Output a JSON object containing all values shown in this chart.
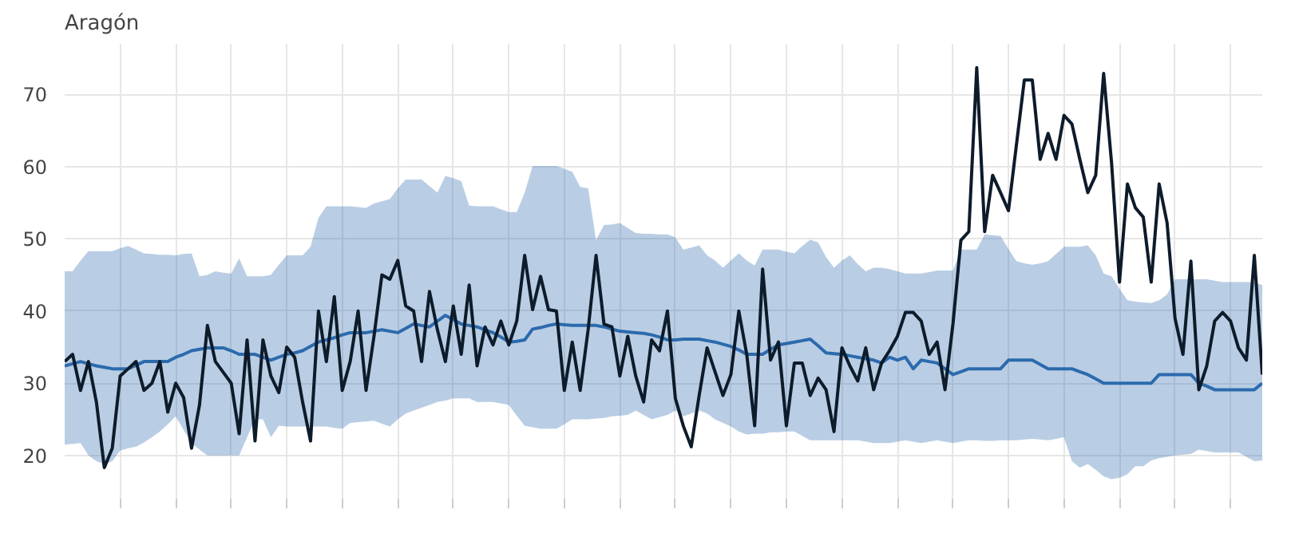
{
  "chart_data": {
    "type": "line",
    "title": "Aragón",
    "categories": [
      null,
      null,
      null,
      null,
      null,
      null,
      null,
      null,
      null,
      null,
      null,
      null,
      null,
      null,
      null,
      null,
      null,
      null,
      null,
      null,
      null,
      null,
      null,
      null,
      null,
      null,
      null,
      null,
      null,
      null,
      null,
      null,
      null,
      null,
      null,
      null,
      null,
      null,
      null,
      null,
      null,
      null,
      null,
      null,
      null,
      null,
      null,
      null,
      null,
      null,
      null,
      null,
      null,
      null,
      null,
      null,
      null,
      null,
      null,
      null,
      null,
      null,
      null,
      null,
      null,
      null,
      null,
      null,
      null,
      null,
      null,
      null,
      null,
      null,
      null,
      null,
      null,
      null,
      null,
      null,
      null,
      null,
      null,
      null,
      null,
      null,
      null,
      null,
      null,
      null,
      null,
      null,
      null,
      null,
      null,
      null,
      null,
      null,
      null,
      null,
      null,
      null,
      null,
      null,
      null,
      null,
      null,
      null,
      null,
      null,
      null,
      null,
      null,
      null,
      null,
      null,
      null,
      null,
      null,
      null,
      null,
      null,
      null,
      null,
      null,
      null,
      null,
      null,
      null,
      null,
      null,
      null,
      null,
      null,
      null,
      null,
      null,
      null,
      null,
      null,
      null,
      null,
      null,
      null,
      null,
      null,
      null,
      null,
      null,
      null,
      null,
      null
    ],
    "ylim": [
      14,
      77
    ],
    "yticks": [
      20,
      30,
      40,
      50,
      60,
      70
    ],
    "tick_labels": "y",
    "grid": true,
    "marker": "none",
    "line_style": "solid",
    "series": [
      {
        "color": "#2c6aad",
        "values": [
          32.4,
          32.7,
          33,
          32.7,
          32.4,
          32.2,
          32,
          32,
          32,
          32.5,
          33,
          33,
          33,
          33,
          33.6,
          34,
          34.5,
          34.7,
          34.9,
          34.9,
          34.9,
          34.5,
          34,
          34,
          34,
          33.6,
          33.2,
          33.6,
          34,
          34.2,
          34.5,
          35.1,
          35.7,
          36,
          36.3,
          36.7,
          37,
          37,
          37,
          37.2,
          37.4,
          37.2,
          37,
          37.6,
          38.2,
          38,
          37.8,
          38.6,
          39.4,
          38.8,
          38.2,
          38,
          37.8,
          37.4,
          37,
          36.4,
          35.7,
          35.8,
          36,
          37.5,
          37.7,
          38,
          38.2,
          38.1,
          38,
          38,
          38,
          38,
          37.8,
          37.5,
          37.2,
          37.1,
          37,
          36.9,
          36.7,
          36.4,
          36,
          36,
          36.1,
          36.1,
          36.1,
          35.9,
          35.7,
          35.4,
          35.1,
          34.6,
          34,
          34,
          34,
          34.7,
          35.3,
          35.5,
          35.7,
          35.9,
          36.1,
          35.2,
          34.2,
          34.1,
          34,
          33.8,
          33.6,
          33.4,
          33.2,
          32.8,
          33.6,
          33.2,
          33.6,
          32,
          33.2,
          33,
          32.8,
          32,
          31.2,
          31.6,
          32,
          32,
          32,
          32,
          32,
          33.2,
          33.2,
          33.2,
          33.2,
          32.6,
          32,
          32,
          32,
          32,
          31.6,
          31.2,
          30.6,
          30,
          30,
          30,
          30,
          30,
          30,
          30,
          31.2,
          31.2,
          31.2,
          31.2,
          31.2,
          30,
          29.6,
          29.1,
          29.1,
          29.1,
          29.1,
          29.1,
          29.1,
          30
        ],
        "lower": [
          21.5,
          21.6,
          21.7,
          20,
          19.2,
          18.8,
          19.2,
          20.7,
          21,
          21.2,
          21.8,
          22.5,
          23.3,
          24.3,
          25.4,
          23.5,
          21.7,
          20.8,
          20,
          20,
          20,
          20,
          20,
          22.5,
          25,
          25,
          22.5,
          24.1,
          24,
          24,
          24,
          24,
          24,
          24,
          23.8,
          23.7,
          24.5,
          24.6,
          24.7,
          24.8,
          24.4,
          24,
          25,
          25.8,
          26.2,
          26.6,
          27,
          27.4,
          27.6,
          27.9,
          27.9,
          27.9,
          27.4,
          27.4,
          27.4,
          27.2,
          27,
          25.5,
          24.1,
          23.9,
          23.7,
          23.7,
          23.7,
          24.3,
          25,
          25,
          25,
          25.1,
          25.2,
          25.4,
          25.5,
          25.6,
          26.2,
          25.6,
          25,
          25.3,
          25.6,
          26.2,
          25.4,
          25.8,
          26.2,
          25.8,
          25,
          24.5,
          24,
          23.3,
          22.9,
          23,
          23,
          23.2,
          23.2,
          23.3,
          23.3,
          22.7,
          22.1,
          22.1,
          22.1,
          22.1,
          22.1,
          22.1,
          22.1,
          21.9,
          21.7,
          21.7,
          21.7,
          21.9,
          22.1,
          21.9,
          21.7,
          21.9,
          22.1,
          21.9,
          21.7,
          21.9,
          22.1,
          22.1,
          22,
          22,
          22.1,
          22.1,
          22.1,
          22.2,
          22.3,
          22.2,
          22.1,
          22.3,
          22.5,
          19.2,
          18.3,
          18.8,
          18,
          17.1,
          16.7,
          16.9,
          17.4,
          18.5,
          18.5,
          19.3,
          19.6,
          19.8,
          20,
          20.1,
          20.2,
          20.8,
          20.6,
          20.4,
          20.4,
          20.4,
          20.4,
          19.8,
          19.2,
          19.3
        ],
        "upper": [
          45.5,
          45.5,
          47,
          48.3,
          48.3,
          48.3,
          48.3,
          48.7,
          49,
          48.5,
          48,
          47.9,
          47.8,
          47.8,
          47.7,
          47.9,
          48,
          44.8,
          45,
          45.5,
          45.3,
          45.2,
          47.3,
          44.8,
          44.8,
          44.8,
          45,
          46.4,
          47.7,
          47.7,
          47.7,
          48.9,
          52.9,
          54.5,
          54.5,
          54.5,
          54.5,
          54.4,
          54.3,
          54.9,
          55.2,
          55.5,
          57,
          58.2,
          58.2,
          58.2,
          57.3,
          56.4,
          58.7,
          58.4,
          58,
          54.6,
          54.5,
          54.5,
          54.5,
          54.1,
          53.7,
          53.7,
          56.4,
          60.1,
          60.1,
          60.1,
          60.1,
          59.7,
          59.3,
          57.2,
          57,
          49.8,
          51.9,
          52,
          52.2,
          51.5,
          50.8,
          50.7,
          50.7,
          50.6,
          50.6,
          50.2,
          48.5,
          48.8,
          49.1,
          47.7,
          47,
          46,
          47,
          48,
          47,
          46.3,
          48.5,
          48.5,
          48.5,
          48.2,
          48,
          49,
          49.9,
          49.5,
          47.5,
          46,
          47,
          47.7,
          46.5,
          45.5,
          46,
          46,
          45.8,
          45.5,
          45.2,
          45.2,
          45.2,
          45.4,
          45.6,
          45.6,
          45.6,
          48.5,
          48.5,
          48.5,
          50.6,
          50.5,
          50.4,
          48.6,
          46.9,
          46.6,
          46.4,
          46.6,
          46.9,
          47.9,
          48.9,
          48.9,
          48.9,
          49.1,
          47.7,
          45.2,
          44.8,
          43.1,
          41.5,
          41.3,
          41.2,
          41.1,
          41.5,
          42.3,
          44.4,
          44.4,
          44.4,
          44.4,
          44.4,
          44.2,
          44,
          44,
          44,
          44,
          44,
          43.6
        ]
      },
      {
        "color": "#0d1b2a",
        "values": [
          33,
          34,
          29,
          33,
          27.4,
          18.3,
          21,
          31,
          32,
          33,
          29,
          30,
          33,
          26,
          30,
          28,
          21,
          27,
          38,
          33,
          31.5,
          30,
          23,
          36,
          22,
          36,
          31,
          28.7,
          35,
          33.6,
          27.4,
          22,
          40,
          33,
          42,
          29,
          33,
          40,
          29,
          36.5,
          45,
          44.4,
          47,
          40.7,
          40,
          33,
          42.7,
          37.4,
          33,
          40.7,
          34,
          43.6,
          32.4,
          37.8,
          35.3,
          38.6,
          35.3,
          38.6,
          47.7,
          40.2,
          44.8,
          40.2,
          40,
          29,
          35.7,
          29,
          37.4,
          47.7,
          38.2,
          37.8,
          31,
          36.5,
          31,
          27.4,
          36,
          34.5,
          40,
          27.9,
          24.1,
          21.2,
          28.3,
          34.9,
          31.6,
          28.3,
          31.2,
          40,
          34,
          24.1,
          45.8,
          33.2,
          35.7,
          24.1,
          32.8,
          32.8,
          28.3,
          30.7,
          29.1,
          23.3,
          34.9,
          32.4,
          30.3,
          34.9,
          29.1,
          32.8,
          34.5,
          36.5,
          39.8,
          39.8,
          38.6,
          34,
          35.7,
          29.1,
          38.2,
          49.8,
          51,
          73.7,
          51,
          58.8,
          56.4,
          53.9,
          63,
          72,
          72,
          61,
          64.6,
          61,
          67.1,
          65.9,
          61,
          56.4,
          58.8,
          72.9,
          60.5,
          44,
          57.6,
          54.3,
          53,
          44,
          57.6,
          52.2,
          39,
          34,
          46.9,
          29.1,
          32.4,
          38.6,
          39.8,
          38.6,
          34.9,
          33.2,
          47.7,
          31.2
        ]
      }
    ]
  }
}
